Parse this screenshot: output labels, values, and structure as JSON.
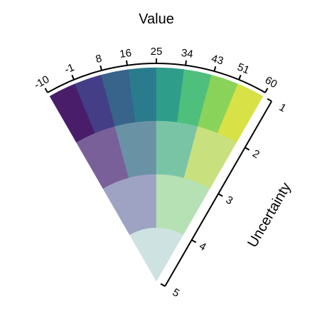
{
  "chart_data": {
    "type": "vsup",
    "title": "Value",
    "y_label": "Uncertainty",
    "xlim": [
      -10,
      60
    ],
    "xticks": [
      -10,
      -1,
      8,
      16,
      25,
      34,
      43,
      51,
      60
    ],
    "ylim": [
      1,
      5
    ],
    "yticks": [
      1,
      2,
      3,
      4,
      5
    ],
    "rows": [
      {
        "colors": [
          "#4a1d6b",
          "#433e85",
          "#38638a",
          "#2a7c8c",
          "#2e9e8a",
          "#4ebf7c",
          "#8ad35a",
          "#d8e145"
        ]
      },
      {
        "colors": [
          "#7a6099",
          "#6a92a5",
          "#7ac4a6",
          "#c8e07e"
        ]
      },
      {
        "colors": [
          "#9ea3c4",
          "#b5e1b4"
        ]
      },
      {
        "colors": [
          "#cde2e1"
        ]
      }
    ]
  }
}
